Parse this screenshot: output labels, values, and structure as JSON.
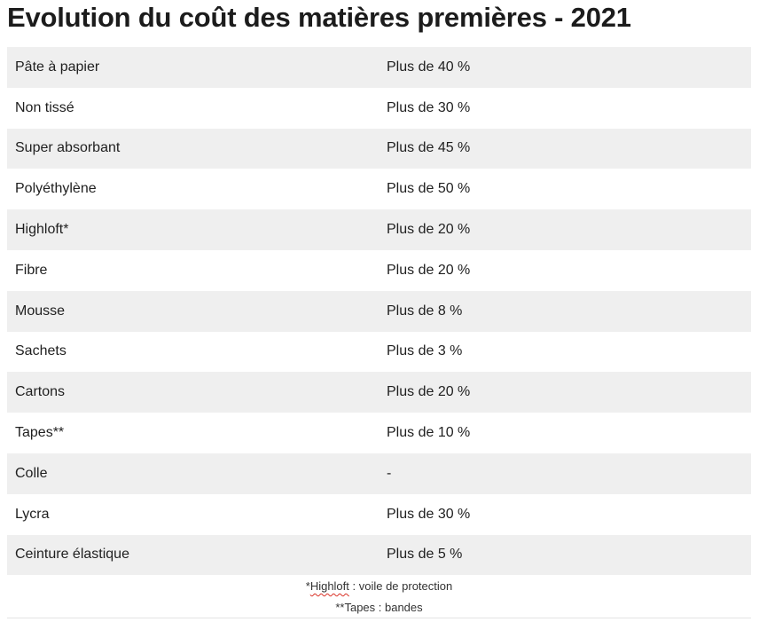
{
  "title": "Evolution du coût des matières premières - 2021",
  "rows": [
    {
      "material": "Pâte à papier",
      "change": "Plus de 40 %"
    },
    {
      "material": "Non tissé",
      "change": "Plus de 30 %"
    },
    {
      "material": "Super absorbant",
      "change": "Plus de 45 %"
    },
    {
      "material": "Polyéthylène",
      "change": "Plus de 50 %"
    },
    {
      "material": "Highloft*",
      "change": "Plus de 20 %"
    },
    {
      "material": "Fibre",
      "change": "Plus de 20 %"
    },
    {
      "material": "Mousse",
      "change": "Plus de 8 %"
    },
    {
      "material": "Sachets",
      "change": "Plus de 3 %"
    },
    {
      "material": "Cartons",
      "change": "Plus de 20 %"
    },
    {
      "material": "Tapes**",
      "change": "Plus de 10 %"
    },
    {
      "material": "Colle",
      "change": "-"
    },
    {
      "material": "Lycra",
      "change": "Plus de 30 %"
    },
    {
      "material": "Ceinture élastique",
      "change": "Plus de 5 %"
    }
  ],
  "notes": {
    "note1_prefix": "*",
    "note1_term": "Highloft",
    "note1_rest": " : voile de protection",
    "note2": "**Tapes : bandes"
  },
  "colors": {
    "stripe": "#efefef",
    "text": "#1f1f1f",
    "spellcheck_underline": "#d93025"
  }
}
